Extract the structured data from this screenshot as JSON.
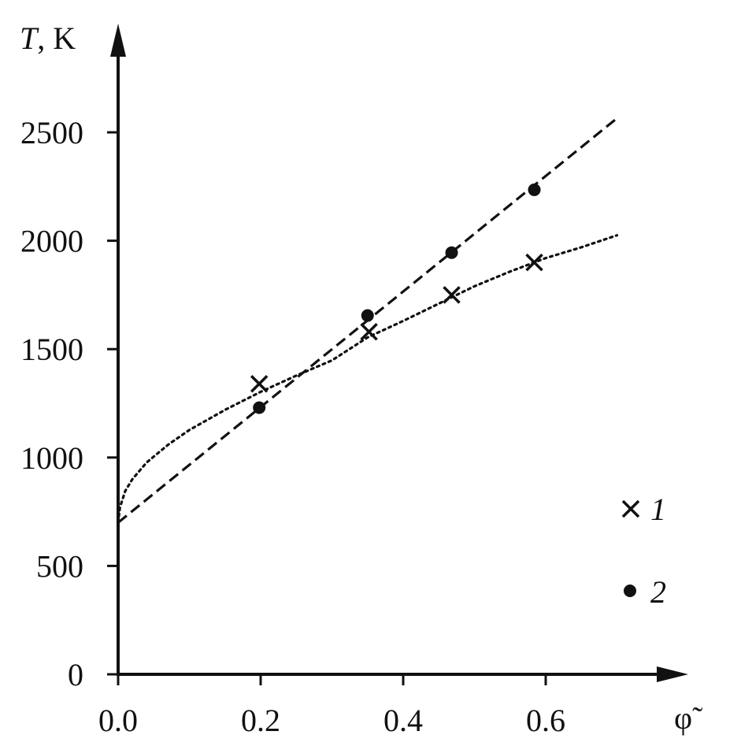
{
  "chart_data": {
    "type": "scatter",
    "title": "",
    "xlabel": "φ̃",
    "ylabel_symbol": "T",
    "ylabel_unit": ", K",
    "xlim": [
      0.0,
      0.7
    ],
    "ylim": [
      0,
      2500
    ],
    "x_ticks": [
      0.0,
      0.2,
      0.4,
      0.6
    ],
    "x_tick_labels": [
      "0.0",
      "0.2",
      "0.4",
      "0.6"
    ],
    "y_ticks": [
      0,
      500,
      1000,
      1500,
      2000,
      2500
    ],
    "y_tick_labels": [
      "0",
      "500",
      "1000",
      "1500",
      "2000",
      "2500"
    ],
    "grid": false,
    "legend_position": "bottom-right",
    "colors": {
      "ink": "#111111"
    },
    "series": [
      {
        "name": "1",
        "marker": "cross",
        "points": [
          {
            "x": 0.198,
            "y": 1340
          },
          {
            "x": 0.352,
            "y": 1580
          },
          {
            "x": 0.468,
            "y": 1750
          },
          {
            "x": 0.584,
            "y": 1900
          }
        ],
        "fit": {
          "style": "dotted",
          "model": "power",
          "curve": [
            {
              "x": 0.0,
              "y": 700
            },
            {
              "x": 0.0025,
              "y": 770
            },
            {
              "x": 0.01,
              "y": 846
            },
            {
              "x": 0.02,
              "y": 900
            },
            {
              "x": 0.04,
              "y": 977
            },
            {
              "x": 0.07,
              "y": 1059
            },
            {
              "x": 0.1,
              "y": 1127
            },
            {
              "x": 0.15,
              "y": 1220
            },
            {
              "x": 0.2,
              "y": 1303
            },
            {
              "x": 0.25,
              "y": 1378
            },
            {
              "x": 0.3,
              "y": 1448
            },
            {
              "x": 0.35,
              "y": 1554
            },
            {
              "x": 0.4,
              "y": 1630
            },
            {
              "x": 0.45,
              "y": 1710
            },
            {
              "x": 0.5,
              "y": 1790
            },
            {
              "x": 0.55,
              "y": 1858
            },
            {
              "x": 0.6,
              "y": 1920
            },
            {
              "x": 0.65,
              "y": 1970
            },
            {
              "x": 0.7,
              "y": 2025
            }
          ]
        }
      },
      {
        "name": "2",
        "marker": "dot",
        "points": [
          {
            "x": 0.198,
            "y": 1230
          },
          {
            "x": 0.35,
            "y": 1655
          },
          {
            "x": 0.468,
            "y": 1945
          },
          {
            "x": 0.584,
            "y": 2235
          }
        ],
        "fit": {
          "style": "dashed",
          "model": "linear",
          "curve": [
            {
              "x": 0.0,
              "y": 700
            },
            {
              "x": 0.7,
              "y": 2565
            }
          ]
        }
      }
    ]
  }
}
